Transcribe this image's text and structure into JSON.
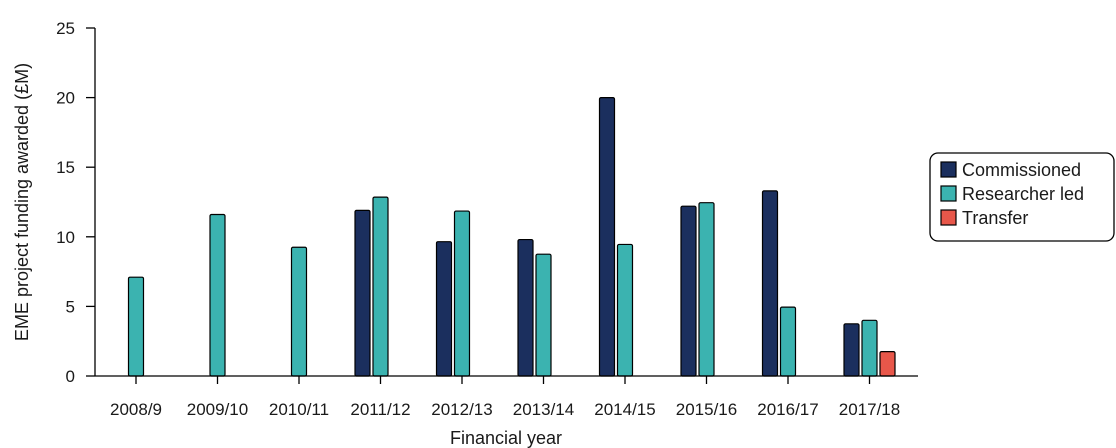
{
  "chart_data": {
    "type": "bar",
    "title": "",
    "xlabel": "Financial year",
    "ylabel": "EME project funding awarded (£M)",
    "ylim": [
      0,
      25
    ],
    "yticks": [
      0,
      5,
      10,
      15,
      20,
      25
    ],
    "grid": false,
    "legend_position": "right",
    "categories": [
      "2008/9",
      "2009/10",
      "2010/11",
      "2011/12",
      "2012/13",
      "2013/14",
      "2014/15",
      "2015/16",
      "2016/17",
      "2017/18"
    ],
    "series": [
      {
        "name": "Commissioned",
        "color": "#1b2f5e",
        "values": [
          null,
          null,
          null,
          11.9,
          9.65,
          9.8,
          20.0,
          12.2,
          13.3,
          3.75
        ]
      },
      {
        "name": "Researcher led",
        "color": "#3bb3b0",
        "values": [
          7.1,
          11.6,
          9.25,
          12.85,
          11.85,
          8.75,
          9.45,
          12.45,
          4.95,
          4.0
        ]
      },
      {
        "name": "Transfer",
        "color": "#e8574a",
        "values": [
          null,
          null,
          null,
          null,
          null,
          null,
          null,
          null,
          null,
          1.75
        ]
      }
    ]
  }
}
